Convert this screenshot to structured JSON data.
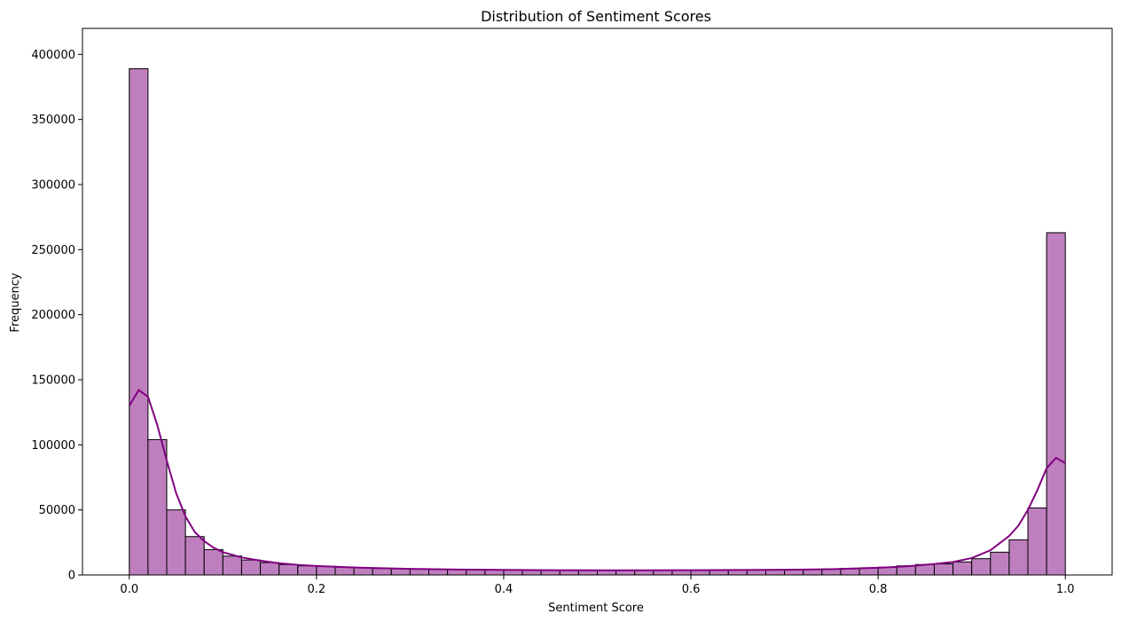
{
  "chart_data": {
    "type": "bar",
    "title": "Distribution of Sentiment Scores",
    "xlabel": "Sentiment Score",
    "ylabel": "Frequency",
    "xlim": [
      -0.05,
      1.05
    ],
    "ylim": [
      0,
      420000
    ],
    "xticks": [
      0.0,
      0.2,
      0.4,
      0.6,
      0.8,
      1.0
    ],
    "xtick_labels": [
      "0.0",
      "0.2",
      "0.4",
      "0.6",
      "0.8",
      "1.0"
    ],
    "yticks": [
      0,
      50000,
      100000,
      150000,
      200000,
      250000,
      300000,
      350000,
      400000
    ],
    "ytick_labels": [
      "0",
      "50000",
      "100000",
      "150000",
      "200000",
      "250000",
      "300000",
      "350000",
      "400000"
    ],
    "grid": false,
    "bin_edges_range": [
      0.0,
      1.0
    ],
    "bin_count": 50,
    "values": [
      389000,
      104000,
      50000,
      29500,
      19500,
      14500,
      11500,
      9500,
      8000,
      7000,
      6500,
      6000,
      5500,
      5000,
      4800,
      4500,
      4300,
      4100,
      4000,
      3900,
      3800,
      3700,
      3600,
      3500,
      3500,
      3500,
      3500,
      3500,
      3500,
      3600,
      3600,
      3700,
      3800,
      3900,
      4000,
      4200,
      4400,
      4700,
      5000,
      5500,
      6000,
      7000,
      8000,
      8500,
      10000,
      12500,
      17500,
      27000,
      51500,
      263000
    ],
    "bar_color": "#bf7fbf",
    "edge_color": "#000000",
    "kde": {
      "color": "#800080",
      "x": [
        0.0,
        0.01,
        0.02,
        0.03,
        0.04,
        0.05,
        0.06,
        0.07,
        0.08,
        0.09,
        0.1,
        0.12,
        0.14,
        0.16,
        0.18,
        0.2,
        0.25,
        0.3,
        0.35,
        0.4,
        0.45,
        0.5,
        0.55,
        0.6,
        0.65,
        0.7,
        0.75,
        0.8,
        0.82,
        0.84,
        0.86,
        0.88,
        0.9,
        0.92,
        0.94,
        0.95,
        0.96,
        0.97,
        0.98,
        0.99,
        1.0
      ],
      "y": [
        130000,
        142000,
        137000,
        115000,
        88000,
        63000,
        45000,
        33000,
        26000,
        21000,
        17500,
        13500,
        11000,
        9000,
        7800,
        6900,
        5500,
        4700,
        4200,
        3900,
        3700,
        3600,
        3600,
        3700,
        3800,
        4000,
        4400,
        5500,
        6200,
        7200,
        8400,
        10000,
        13000,
        19000,
        30000,
        38000,
        50000,
        65000,
        82000,
        90000,
        86000
      ]
    }
  }
}
